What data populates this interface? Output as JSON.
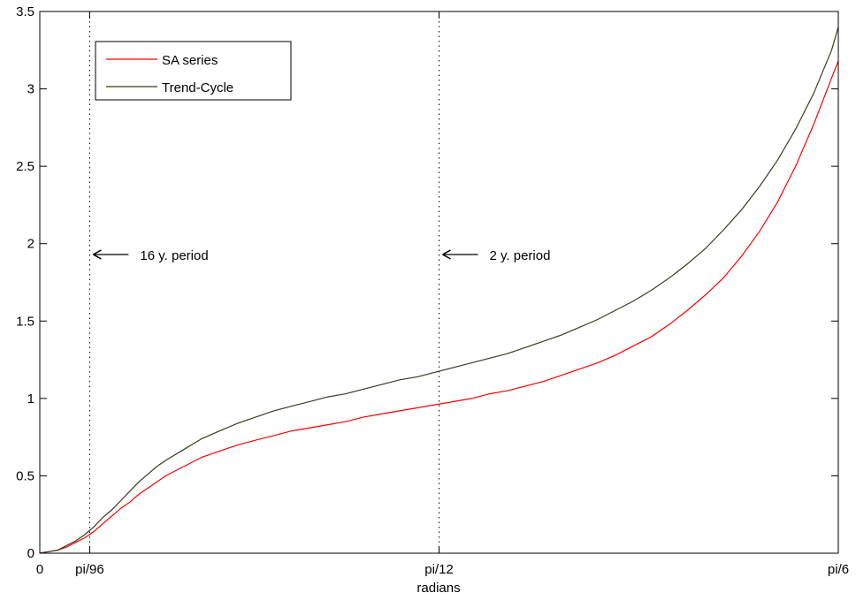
{
  "chart_data": {
    "type": "line",
    "xlabel": "radians",
    "ylabel": "",
    "title": "",
    "xlim": [
      0,
      0.5236
    ],
    "ylim": [
      0,
      3.5
    ],
    "x_ticks": [
      {
        "value": 0,
        "label": "0"
      },
      {
        "value": 0.03272,
        "label": "pi/96"
      },
      {
        "value": 0.2618,
        "label": "pi/12"
      },
      {
        "value": 0.5236,
        "label": "pi/6"
      }
    ],
    "y_ticks": [
      {
        "value": 0,
        "label": "0"
      },
      {
        "value": 0.5,
        "label": "0.5"
      },
      {
        "value": 1,
        "label": "1"
      },
      {
        "value": 1.5,
        "label": "1.5"
      },
      {
        "value": 2,
        "label": "2"
      },
      {
        "value": 2.5,
        "label": "2.5"
      },
      {
        "value": 3,
        "label": "3"
      },
      {
        "value": 3.5,
        "label": "3.5"
      }
    ],
    "grid": false,
    "legend_position": "top-left",
    "series": [
      {
        "name": "SA series",
        "color": "#ff0000",
        "x": [
          0,
          0.0059,
          0.0118,
          0.0177,
          0.0236,
          0.0295,
          0.0354,
          0.0413,
          0.0472,
          0.0531,
          0.059,
          0.0649,
          0.0708,
          0.0767,
          0.0826,
          0.0944,
          0.1062,
          0.118,
          0.1298,
          0.1416,
          0.1534,
          0.1652,
          0.177,
          0.1888,
          0.2006,
          0.2124,
          0.2242,
          0.236,
          0.2478,
          0.2596,
          0.2714,
          0.2832,
          0.295,
          0.3068,
          0.3186,
          0.3304,
          0.3422,
          0.354,
          0.3658,
          0.3776,
          0.3894,
          0.4012,
          0.413,
          0.4248,
          0.4366,
          0.4484,
          0.4602,
          0.472,
          0.4838,
          0.4956,
          0.5074,
          0.5192,
          0.5236
        ],
        "values": [
          0,
          0.01,
          0.02,
          0.04,
          0.07,
          0.1,
          0.14,
          0.19,
          0.24,
          0.29,
          0.33,
          0.38,
          0.42,
          0.46,
          0.5,
          0.56,
          0.62,
          0.66,
          0.7,
          0.73,
          0.76,
          0.79,
          0.81,
          0.83,
          0.85,
          0.88,
          0.9,
          0.92,
          0.94,
          0.96,
          0.98,
          1.0,
          1.03,
          1.05,
          1.08,
          1.11,
          1.15,
          1.19,
          1.23,
          1.28,
          1.34,
          1.4,
          1.48,
          1.57,
          1.67,
          1.78,
          1.92,
          2.08,
          2.27,
          2.5,
          2.77,
          3.07,
          3.18
        ]
      },
      {
        "name": "Trend-Cycle",
        "color": "#3b3b1f",
        "x": [
          0,
          0.0059,
          0.0118,
          0.0177,
          0.0236,
          0.0295,
          0.0354,
          0.0413,
          0.0472,
          0.0531,
          0.059,
          0.0649,
          0.0708,
          0.0767,
          0.0826,
          0.0944,
          0.1062,
          0.118,
          0.1298,
          0.1416,
          0.1534,
          0.1652,
          0.177,
          0.1888,
          0.2006,
          0.2124,
          0.2242,
          0.236,
          0.2478,
          0.2596,
          0.2714,
          0.2832,
          0.295,
          0.3068,
          0.3186,
          0.3304,
          0.3422,
          0.354,
          0.3658,
          0.3776,
          0.3894,
          0.4012,
          0.413,
          0.4248,
          0.4366,
          0.4484,
          0.4602,
          0.472,
          0.4838,
          0.4956,
          0.5074,
          0.5192,
          0.5236
        ],
        "values": [
          0,
          0.01,
          0.02,
          0.05,
          0.08,
          0.12,
          0.17,
          0.23,
          0.28,
          0.34,
          0.4,
          0.46,
          0.51,
          0.56,
          0.6,
          0.67,
          0.74,
          0.79,
          0.84,
          0.88,
          0.92,
          0.95,
          0.98,
          1.01,
          1.03,
          1.06,
          1.09,
          1.12,
          1.14,
          1.17,
          1.2,
          1.23,
          1.26,
          1.29,
          1.33,
          1.37,
          1.41,
          1.46,
          1.51,
          1.57,
          1.63,
          1.7,
          1.78,
          1.87,
          1.97,
          2.09,
          2.22,
          2.37,
          2.54,
          2.74,
          2.97,
          3.25,
          3.4
        ]
      }
    ],
    "vertical_lines": [
      {
        "x": 0.03272,
        "style": "dotted"
      },
      {
        "x": 0.2618,
        "style": "dotted"
      }
    ],
    "annotations": [
      {
        "text": "16 y. period",
        "x": 0.03272,
        "y": 1.93
      },
      {
        "text": "2 y. period",
        "x": 0.2618,
        "y": 1.93
      }
    ]
  }
}
